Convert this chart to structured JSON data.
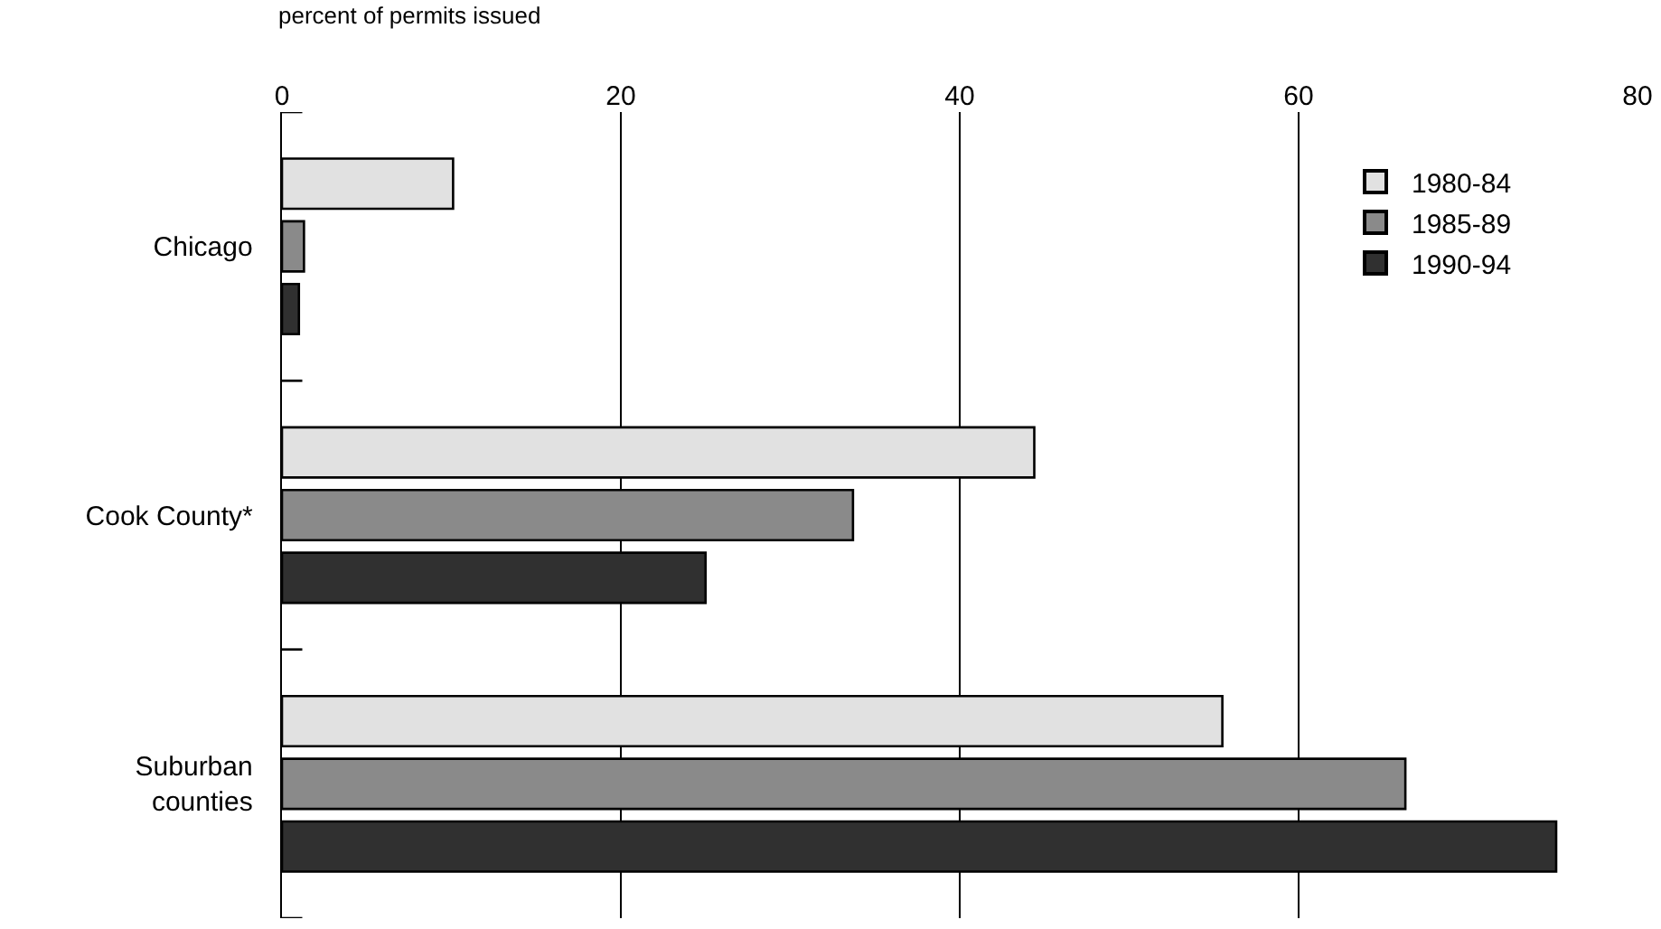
{
  "chart_data": {
    "type": "bar",
    "orientation": "horizontal",
    "xlabel": "percent of permits issued",
    "categories": [
      "Chicago",
      "Cook County*",
      "Suburban\ncounties"
    ],
    "series": [
      {
        "name": "1980-84",
        "color": "#e1e1e1",
        "values": [
          10.1,
          44.4,
          55.5
        ]
      },
      {
        "name": "1985-89",
        "color": "#8a8a8a",
        "values": [
          1.3,
          33.7,
          66.3
        ]
      },
      {
        "name": "1990-94",
        "color": "#303030",
        "values": [
          1.0,
          25.0,
          75.2
        ]
      }
    ],
    "xlim": [
      0,
      80
    ],
    "xticks": [
      0,
      20,
      40,
      60,
      80
    ],
    "grid": "x",
    "legend": "top right"
  }
}
